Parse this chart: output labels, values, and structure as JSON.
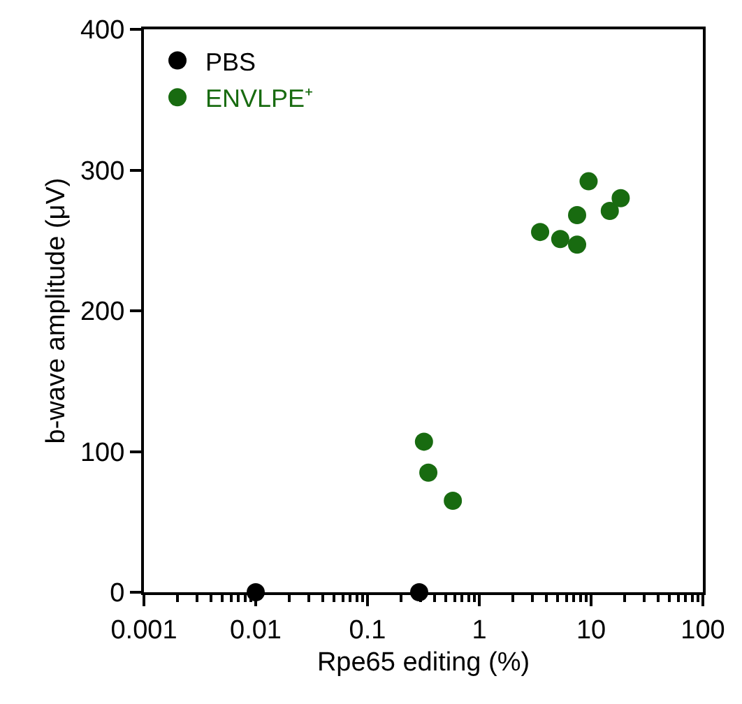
{
  "chart_data": {
    "type": "scatter",
    "xlabel": "Rpe65 editing (%)",
    "ylabel": "b-wave amplitude (μV)",
    "log": "x",
    "xlim": [
      0.001,
      100
    ],
    "xticks": [
      0.001,
      0.01,
      0.1,
      1,
      10,
      100,
      {
        "value": 0.002,
        "label": null
      },
      {
        "value": 0.003,
        "label": null
      },
      {
        "value": 0.004,
        "label": null
      },
      {
        "value": 0.005,
        "label": null
      },
      {
        "value": 0.006,
        "label": null
      },
      {
        "value": 0.007,
        "label": null
      },
      {
        "value": 0.008,
        "label": null
      },
      {
        "value": 0.009,
        "label": null
      },
      {
        "value": 0.02,
        "label": null
      },
      {
        "value": 0.03,
        "label": null
      },
      {
        "value": 0.04,
        "label": null
      },
      {
        "value": 0.05,
        "label": null
      },
      {
        "value": 0.06,
        "label": null
      },
      {
        "value": 0.07,
        "label": null
      },
      {
        "value": 0.08,
        "label": null
      },
      {
        "value": 0.09,
        "label": null
      },
      {
        "value": 0.2,
        "label": null
      },
      {
        "value": 0.3,
        "label": null
      },
      {
        "value": 0.4,
        "label": null
      },
      {
        "value": 0.5,
        "label": null
      },
      {
        "value": 0.6,
        "label": null
      },
      {
        "value": 0.7,
        "label": null
      },
      {
        "value": 0.8,
        "label": null
      },
      {
        "value": 0.9,
        "label": null
      },
      {
        "value": 2,
        "label": null
      },
      {
        "value": 3,
        "label": null
      },
      {
        "value": 4,
        "label": null
      },
      {
        "value": 5,
        "label": null
      },
      {
        "value": 6,
        "label": null
      },
      {
        "value": 7,
        "label": null
      },
      {
        "value": 8,
        "label": null
      },
      {
        "value": 9,
        "label": null
      },
      {
        "value": 20,
        "label": null
      },
      {
        "value": 30,
        "label": null
      },
      {
        "value": 40,
        "label": null
      },
      {
        "value": 50,
        "label": null
      },
      {
        "value": 60,
        "label": null
      },
      {
        "value": 70,
        "label": null
      },
      {
        "value": 80,
        "label": null
      },
      {
        "value": 90,
        "label": null
      }
    ],
    "ylim": [
      0,
      400
    ],
    "yticks": [
      0,
      100,
      200,
      300,
      400
    ],
    "grid": false,
    "legend": "top left",
    "marker": "circle",
    "series": [
      {
        "name": "PBS",
        "color": "#000000",
        "x": [
          0.01,
          0.29
        ],
        "values": [
          0,
          0
        ]
      },
      {
        "name": "ENVLPE⁺",
        "color": "#186b10",
        "x": [
          0.32,
          0.35,
          0.58,
          3.5,
          5.3,
          7.5,
          7.5,
          9.5,
          14.7,
          18.4
        ],
        "values": [
          107,
          85,
          65,
          256,
          251,
          247,
          268,
          292,
          271,
          280
        ]
      }
    ]
  }
}
